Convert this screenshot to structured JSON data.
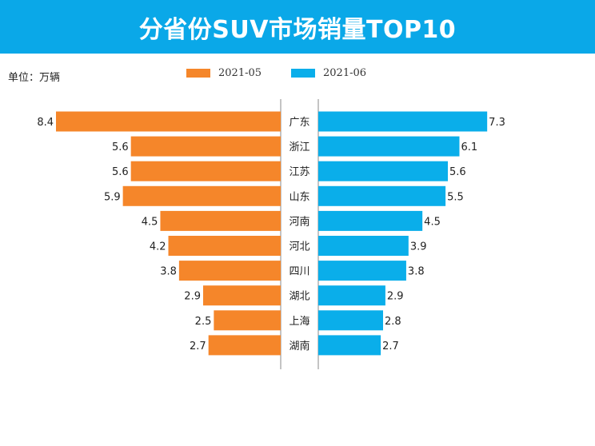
{
  "banner": {
    "title": "分省份SUV市场销量TOP10"
  },
  "unit_label": "单位：万辆",
  "chart_data": {
    "type": "bar",
    "orientation": "horizontal-diverging",
    "categories": [
      "广东",
      "浙江",
      "江苏",
      "山东",
      "河南",
      "河北",
      "四川",
      "湖北",
      "上海",
      "湖南"
    ],
    "series": [
      {
        "name": "2021-05",
        "values": [
          8.4,
          5.6,
          5.6,
          5.9,
          4.5,
          4.2,
          3.8,
          2.9,
          2.5,
          2.7
        ],
        "color": "#f5862a",
        "side": "left"
      },
      {
        "name": "2021-06",
        "values": [
          7.3,
          6.1,
          5.6,
          5.5,
          4.5,
          3.9,
          3.8,
          2.9,
          2.8,
          2.7
        ],
        "color": "#0aaeea",
        "side": "right"
      }
    ],
    "xlim": [
      0,
      8.4
    ],
    "legend_position": "top",
    "grid": false
  },
  "colors": {
    "banner": "#0aa8e8",
    "axis": "#888888"
  }
}
